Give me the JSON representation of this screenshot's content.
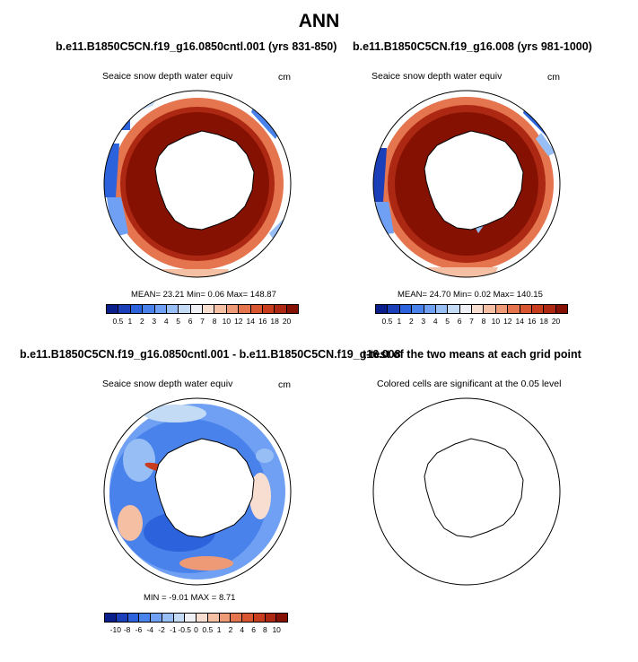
{
  "page_title": "ANN",
  "panels": {
    "p1": {
      "title": "b.e11.B1850C5CN.f19_g16.0850cntl.001 (yrs 831-850)",
      "variable": "Seaice snow depth water equiv",
      "units": "cm",
      "stats": "MEAN=  23.21  Min=   0.06  Max= 148.87"
    },
    "p2": {
      "title": "b.e11.B1850C5CN.f19_g16.008 (yrs 981-1000)",
      "variable": "Seaice snow depth water equiv",
      "units": "cm",
      "stats": "MEAN=  24.70  Min=   0.02  Max= 140.15"
    },
    "p3": {
      "title": "b.e11.B1850C5CN.f19_g16.0850cntl.001 - b.e11.B1850C5CN.f19_g16.008",
      "variable": "Seaice snow depth water equiv",
      "units": "cm",
      "stats": "MIN =  -9.01 MAX =   8.71"
    },
    "p4": {
      "title": "t-test of the two means at each grid point",
      "subtitle": "Colored cells are significant at the 0.05 level"
    }
  },
  "colorbars": {
    "abs": {
      "labels": [
        "0.5",
        "1",
        "2",
        "3",
        "4",
        "5",
        "6",
        "7",
        "8",
        "10",
        "12",
        "14",
        "16",
        "18",
        "20"
      ],
      "colors": [
        "#0a1e8c",
        "#1a3fb8",
        "#2c63dc",
        "#4a82eb",
        "#6fa0f3",
        "#98bff5",
        "#c4dbf5",
        "#eef0f6",
        "#f7ded0",
        "#f5bfa3",
        "#ef9a76",
        "#e5754f",
        "#d95633",
        "#c83d1e",
        "#ad2812",
        "#851103"
      ]
    },
    "diff": {
      "labels": [
        "-10",
        "-8",
        "-6",
        "-4",
        "-2",
        "-1",
        "-0.5",
        "0",
        "0.5",
        "1",
        "2",
        "4",
        "6",
        "8",
        "10"
      ],
      "colors": [
        "#0a1e8c",
        "#1a3fb8",
        "#2c63dc",
        "#4a82eb",
        "#6fa0f3",
        "#98bff5",
        "#c4dbf5",
        "#eef0f6",
        "#f7ded0",
        "#f5bfa3",
        "#ef9a76",
        "#e5754f",
        "#d95633",
        "#c83d1e",
        "#ad2812",
        "#851103"
      ]
    }
  },
  "chart_data": [
    {
      "type": "heatmap",
      "title": "b.e11.B1850C5CN.f19_g16.0850cntl.001 (yrs 831-850)",
      "variable": "Seaice snow depth water equiv",
      "units": "cm",
      "mean": 23.21,
      "min": 0.06,
      "max": 148.87,
      "legend": "bottom"
    },
    {
      "type": "heatmap",
      "title": "b.e11.B1850C5CN.f19_g16.008 (yrs 981-1000)",
      "variable": "Seaice snow depth water equiv",
      "units": "cm",
      "mean": 24.7,
      "min": 0.02,
      "max": 140.15,
      "legend": "bottom"
    },
    {
      "type": "heatmap",
      "title": "b.e11.B1850C5CN.f19_g16.0850cntl.001 - b.e11.B1850C5CN.f19_g16.008",
      "variable": "Seaice snow depth water equiv",
      "units": "cm",
      "min": -9.01,
      "max": 8.71,
      "legend": "bottom"
    },
    {
      "type": "heatmap",
      "title": "t-test of the two means at each grid point",
      "subtitle": "Colored cells are significant at the 0.05 level"
    }
  ]
}
